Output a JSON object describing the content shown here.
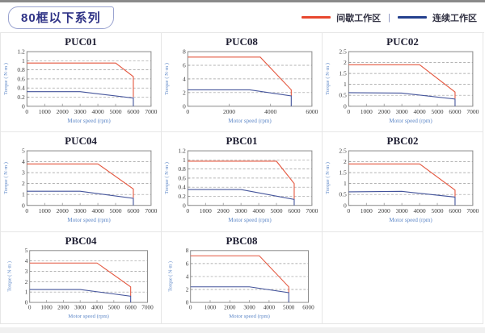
{
  "page": {
    "top_strip_color": "#8a8a8a",
    "footer_strip_color": "#f0f0f0",
    "background": "#ffffff"
  },
  "header": {
    "title": "80框以下系列",
    "title_color": "#2f3386",
    "title_border_color": "#9aa3d0",
    "legend": {
      "separator": "|",
      "items": [
        {
          "label": "间歇工作区",
          "color": "#e8472e"
        },
        {
          "label": "连续工作区",
          "color": "#24408e"
        }
      ]
    }
  },
  "axis": {
    "xlabel": "Motor speed (rpm)",
    "ylabel": "Torque ( N·m )",
    "label_color": "#5d87c7",
    "tick_color": "#3a3a3a",
    "box_color": "#8a8a8a",
    "grid_color": "#9a9a9a"
  },
  "series_colors": {
    "intermittent": "#e4573f",
    "continuous": "#44549b"
  },
  "chart_data": [
    {
      "type": "line",
      "title": "PUC01",
      "xlim": [
        0,
        7000
      ],
      "xticks": [
        0,
        1000,
        2000,
        3000,
        4000,
        5000,
        6000,
        7000
      ],
      "ylim": [
        0,
        1.2
      ],
      "yticks": [
        0,
        0.2,
        0.4,
        0.6,
        0.8,
        1,
        1.2
      ],
      "grid": "dashed-horizontal",
      "legend": "none",
      "series": [
        {
          "name": "间歇工作区",
          "key": "intermittent",
          "points": [
            [
              0,
              0.95
            ],
            [
              5000,
              0.95
            ],
            [
              6000,
              0.65
            ],
            [
              6000,
              0.2
            ]
          ]
        },
        {
          "name": "连续工作区",
          "key": "continuous",
          "points": [
            [
              0,
              0.32
            ],
            [
              3000,
              0.32
            ],
            [
              6000,
              0.18
            ],
            [
              6000,
              0
            ]
          ]
        }
      ]
    },
    {
      "type": "line",
      "title": "PUC08",
      "xlim": [
        0,
        6000
      ],
      "xticks": [
        0,
        2000,
        4000,
        6000
      ],
      "ylim": [
        0,
        8
      ],
      "yticks": [
        0,
        2,
        4,
        6,
        8
      ],
      "grid": "dashed-horizontal",
      "legend": "none",
      "series": [
        {
          "name": "间歇工作区",
          "key": "intermittent",
          "points": [
            [
              0,
              7.2
            ],
            [
              3500,
              7.2
            ],
            [
              5000,
              2.4
            ],
            [
              5000,
              1.5
            ]
          ]
        },
        {
          "name": "连续工作区",
          "key": "continuous",
          "points": [
            [
              0,
              2.4
            ],
            [
              3000,
              2.4
            ],
            [
              5000,
              1.5
            ],
            [
              5000,
              0
            ]
          ]
        }
      ]
    },
    {
      "type": "line",
      "title": "PUC02",
      "xlim": [
        0,
        7000
      ],
      "xticks": [
        0,
        1000,
        2000,
        3000,
        4000,
        5000,
        6000,
        7000
      ],
      "ylim": [
        0,
        2.5
      ],
      "yticks": [
        0,
        0.5,
        1,
        1.5,
        2,
        2.5
      ],
      "grid": "dashed-horizontal",
      "legend": "none",
      "series": [
        {
          "name": "间歇工作区",
          "key": "intermittent",
          "points": [
            [
              0,
              1.9
            ],
            [
              4000,
              1.9
            ],
            [
              6000,
              0.65
            ],
            [
              6000,
              0.35
            ]
          ]
        },
        {
          "name": "连续工作区",
          "key": "continuous",
          "points": [
            [
              0,
              0.62
            ],
            [
              3000,
              0.6
            ],
            [
              6000,
              0.33
            ],
            [
              6000,
              0
            ]
          ]
        }
      ]
    },
    {
      "type": "line",
      "title": "PUC04",
      "xlim": [
        0,
        7000
      ],
      "xticks": [
        0,
        1000,
        2000,
        3000,
        4000,
        5000,
        6000,
        7000
      ],
      "ylim": [
        0,
        5
      ],
      "yticks": [
        0,
        1,
        2,
        3,
        4,
        5
      ],
      "grid": "dashed-horizontal",
      "legend": "none",
      "series": [
        {
          "name": "间歇工作区",
          "key": "intermittent",
          "points": [
            [
              0,
              3.8
            ],
            [
              4000,
              3.8
            ],
            [
              6000,
              1.5
            ],
            [
              6000,
              0.7
            ]
          ]
        },
        {
          "name": "连续工作区",
          "key": "continuous",
          "points": [
            [
              0,
              1.3
            ],
            [
              3000,
              1.3
            ],
            [
              6000,
              0.65
            ],
            [
              6000,
              0
            ]
          ]
        }
      ]
    },
    {
      "type": "line",
      "title": "PBC01",
      "xlim": [
        0,
        7000
      ],
      "xticks": [
        0,
        1000,
        2000,
        3000,
        4000,
        5000,
        6000,
        7000
      ],
      "ylim": [
        0,
        1.2
      ],
      "yticks": [
        0,
        0.2,
        0.4,
        0.6,
        0.8,
        1,
        1.2
      ],
      "grid": "dashed-horizontal",
      "legend": "none",
      "series": [
        {
          "name": "间歇工作区",
          "key": "intermittent",
          "points": [
            [
              0,
              0.97
            ],
            [
              5000,
              0.97
            ],
            [
              6000,
              0.48
            ],
            [
              6000,
              0.14
            ]
          ]
        },
        {
          "name": "连续工作区",
          "key": "continuous",
          "points": [
            [
              0,
              0.35
            ],
            [
              3000,
              0.35
            ],
            [
              6000,
              0.13
            ],
            [
              6000,
              0
            ]
          ]
        }
      ]
    },
    {
      "type": "line",
      "title": "PBC02",
      "xlim": [
        0,
        7000
      ],
      "xticks": [
        0,
        1000,
        2000,
        3000,
        4000,
        5000,
        6000,
        7000
      ],
      "ylim": [
        0,
        2.5
      ],
      "yticks": [
        0,
        0.5,
        1,
        1.5,
        2,
        2.5
      ],
      "grid": "dashed-horizontal",
      "legend": "none",
      "series": [
        {
          "name": "间歇工作区",
          "key": "intermittent",
          "points": [
            [
              0,
              1.9
            ],
            [
              4000,
              1.9
            ],
            [
              6000,
              0.7
            ],
            [
              6000,
              0.4
            ]
          ]
        },
        {
          "name": "连续工作区",
          "key": "continuous",
          "points": [
            [
              0,
              0.62
            ],
            [
              3000,
              0.64
            ],
            [
              6000,
              0.38
            ],
            [
              6000,
              0
            ]
          ]
        }
      ]
    },
    {
      "type": "line",
      "title": "PBC04",
      "xlim": [
        0,
        7000
      ],
      "xticks": [
        0,
        1000,
        2000,
        3000,
        4000,
        5000,
        6000,
        7000
      ],
      "ylim": [
        0,
        5
      ],
      "yticks": [
        0,
        1,
        2,
        3,
        4,
        5
      ],
      "grid": "dashed-horizontal",
      "legend": "none",
      "series": [
        {
          "name": "间歇工作区",
          "key": "intermittent",
          "points": [
            [
              0,
              3.8
            ],
            [
              4000,
              3.8
            ],
            [
              6000,
              1.5
            ],
            [
              6000,
              0.6
            ]
          ]
        },
        {
          "name": "连续工作区",
          "key": "continuous",
          "points": [
            [
              0,
              1.25
            ],
            [
              3000,
              1.25
            ],
            [
              6000,
              0.6
            ],
            [
              6000,
              0
            ]
          ]
        }
      ]
    },
    {
      "type": "line",
      "title": "PBC08",
      "xlim": [
        0,
        6000
      ],
      "xticks": [
        0,
        1000,
        2000,
        3000,
        4000,
        5000,
        6000
      ],
      "ylim": [
        0,
        8
      ],
      "yticks": [
        0,
        2,
        4,
        6,
        8
      ],
      "grid": "dashed-horizontal",
      "legend": "none",
      "series": [
        {
          "name": "间歇工作区",
          "key": "intermittent",
          "points": [
            [
              0,
              7.2
            ],
            [
              3500,
              7.2
            ],
            [
              5000,
              2.4
            ],
            [
              5000,
              1.5
            ]
          ]
        },
        {
          "name": "连续工作区",
          "key": "continuous",
          "points": [
            [
              0,
              2.4
            ],
            [
              3000,
              2.4
            ],
            [
              5000,
              1.5
            ],
            [
              5000,
              0
            ]
          ]
        }
      ]
    }
  ]
}
